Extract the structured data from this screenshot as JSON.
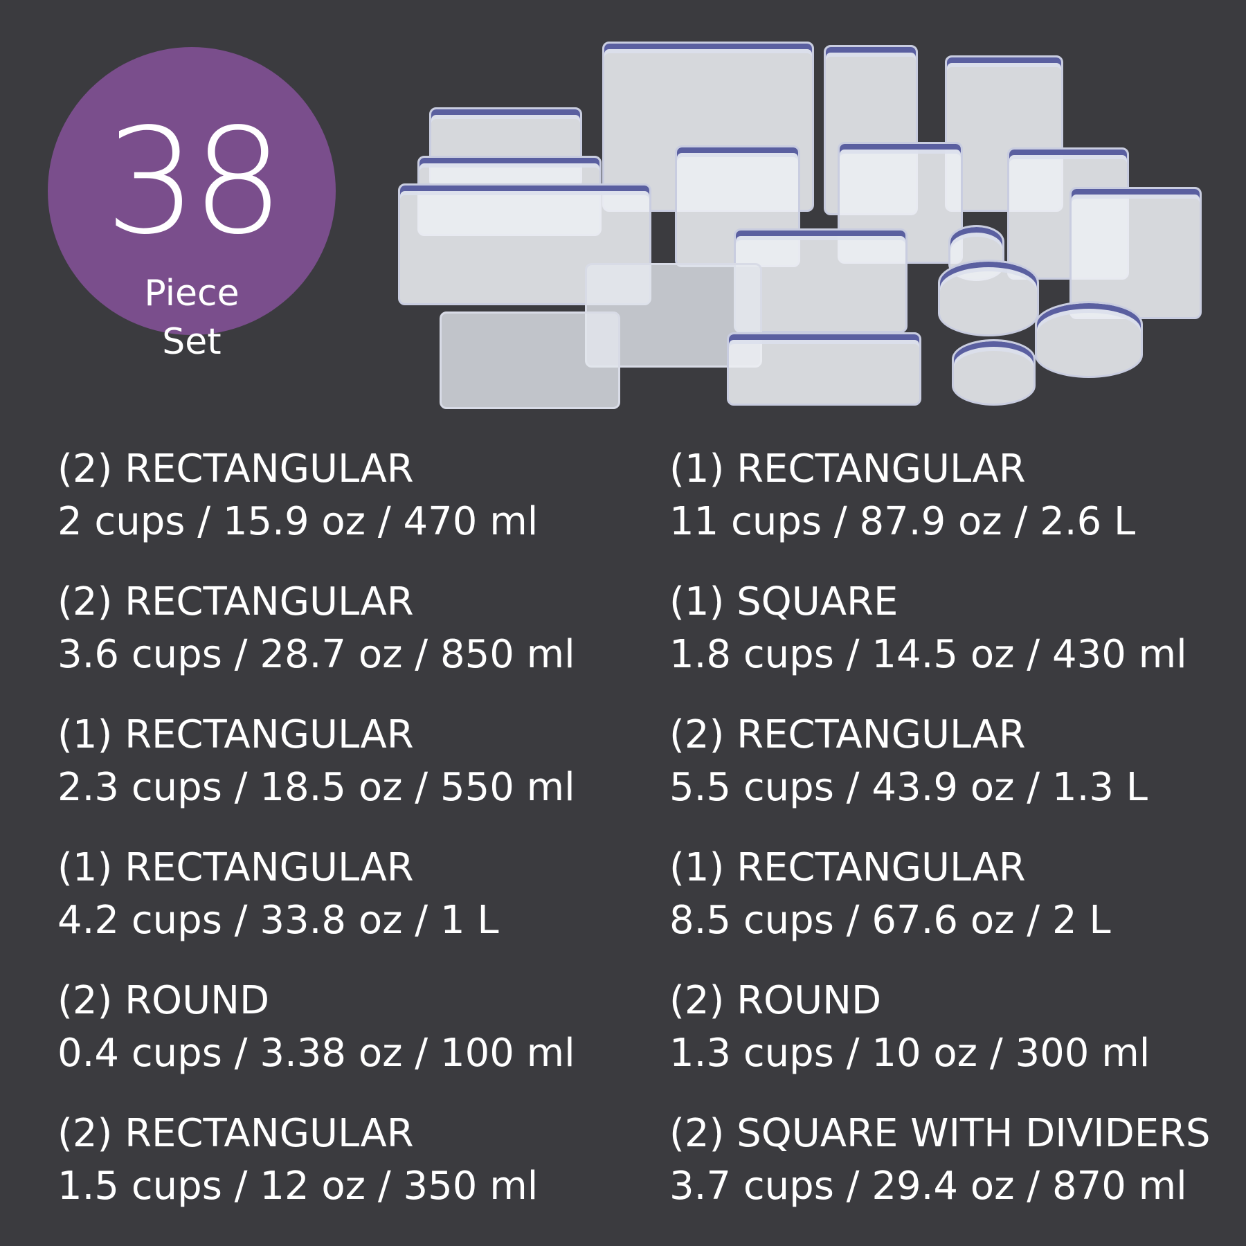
{
  "badge": {
    "number": "38",
    "line1": "Piece",
    "line2": "Set",
    "color": "#7a4e8c"
  },
  "product_image": {
    "icon": "food-storage-containers-image"
  },
  "left_column": [
    {
      "title": "(2) RECTANGULAR",
      "spec": "2 cups / 15.9 oz / 470 ml"
    },
    {
      "title": "(2) RECTANGULAR",
      "spec": "3.6 cups / 28.7 oz / 850 ml"
    },
    {
      "title": "(1) RECTANGULAR",
      "spec": "2.3 cups / 18.5 oz / 550 ml"
    },
    {
      "title": "(1) RECTANGULAR",
      "spec": "4.2 cups / 33.8 oz / 1 L"
    },
    {
      "title": "(2) ROUND",
      "spec": "0.4 cups / 3.38 oz / 100 ml"
    },
    {
      "title": "(2) RECTANGULAR",
      "spec": "1.5 cups / 12 oz / 350 ml"
    }
  ],
  "right_column": [
    {
      "title": "(1) RECTANGULAR",
      "spec": "11 cups / 87.9 oz / 2.6 L"
    },
    {
      "title": "(1) SQUARE",
      "spec": "1.8 cups / 14.5 oz / 430 ml"
    },
    {
      "title": "(2) RECTANGULAR",
      "spec": "5.5 cups / 43.9 oz / 1.3 L"
    },
    {
      "title": "(1) RECTANGULAR",
      "spec": "8.5 cups / 67.6 oz / 2 L"
    },
    {
      "title": "(2) ROUND",
      "spec": "1.3 cups / 10 oz / 300 ml"
    },
    {
      "title": "(2) SQUARE WITH DIVIDERS",
      "spec": "3.7 cups / 29.4 oz / 870 ml"
    }
  ]
}
